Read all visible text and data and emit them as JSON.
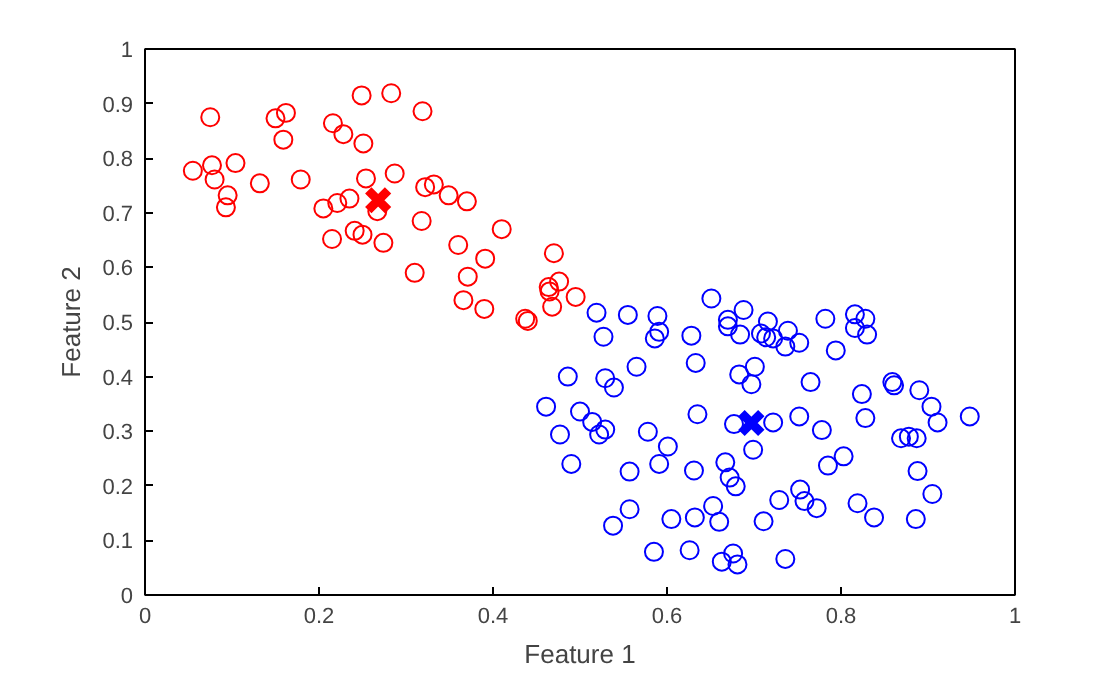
{
  "chart_data": {
    "type": "scatter",
    "xlabel": "Feature 1",
    "ylabel": "Feature 2",
    "xlim": [
      0,
      1
    ],
    "ylim": [
      0,
      1
    ],
    "xticks": [
      0,
      0.2,
      0.4,
      0.6,
      0.8,
      1
    ],
    "yticks": [
      0,
      0.1,
      0.2,
      0.3,
      0.4,
      0.5,
      0.6,
      0.7,
      0.8,
      0.9,
      1
    ],
    "grid": false,
    "series": [
      {
        "color": "#ff0000",
        "marker": "circle",
        "x": [
          0.075,
          0.055,
          0.077,
          0.08,
          0.104,
          0.095,
          0.093,
          0.132,
          0.15,
          0.162,
          0.159,
          0.179,
          0.205,
          0.221,
          0.235,
          0.215,
          0.241,
          0.25,
          0.274,
          0.216,
          0.228,
          0.251,
          0.249,
          0.283,
          0.319,
          0.254,
          0.287,
          0.267,
          0.322,
          0.332,
          0.349,
          0.37,
          0.318,
          0.41,
          0.36,
          0.391,
          0.371,
          0.31,
          0.366,
          0.39,
          0.437,
          0.44,
          0.47,
          0.476,
          0.464,
          0.465,
          0.468,
          0.495
        ],
        "values": [
          0.875,
          0.777,
          0.787,
          0.761,
          0.791,
          0.732,
          0.71,
          0.754,
          0.873,
          0.883,
          0.834,
          0.761,
          0.708,
          0.718,
          0.726,
          0.652,
          0.667,
          0.66,
          0.645,
          0.864,
          0.844,
          0.827,
          0.915,
          0.919,
          0.886,
          0.763,
          0.772,
          0.703,
          0.747,
          0.752,
          0.732,
          0.721,
          0.685,
          0.67,
          0.641,
          0.616,
          0.583,
          0.59,
          0.54,
          0.524,
          0.506,
          0.502,
          0.626,
          0.574,
          0.564,
          0.556,
          0.528,
          0.546
        ]
      },
      {
        "color": "#0000ff",
        "marker": "circle",
        "x": [
          0.519,
          0.555,
          0.589,
          0.527,
          0.591,
          0.586,
          0.628,
          0.651,
          0.67,
          0.67,
          0.688,
          0.684,
          0.716,
          0.708,
          0.714,
          0.722,
          0.739,
          0.736,
          0.752,
          0.782,
          0.816,
          0.828,
          0.816,
          0.83,
          0.794,
          0.486,
          0.529,
          0.539,
          0.565,
          0.633,
          0.683,
          0.697,
          0.701,
          0.765,
          0.859,
          0.861,
          0.89,
          0.824,
          0.461,
          0.904,
          0.911,
          0.948,
          0.828,
          0.752,
          0.722,
          0.778,
          0.869,
          0.878,
          0.887,
          0.803,
          0.785,
          0.888,
          0.753,
          0.758,
          0.772,
          0.729,
          0.819,
          0.838,
          0.905,
          0.886,
          0.711,
          0.736,
          0.5,
          0.514,
          0.529,
          0.522,
          0.477,
          0.49,
          0.578,
          0.601,
          0.635,
          0.677,
          0.699,
          0.591,
          0.557,
          0.631,
          0.667,
          0.672,
          0.679,
          0.653,
          0.66,
          0.632,
          0.605,
          0.557,
          0.538,
          0.585,
          0.626,
          0.663,
          0.676,
          0.681
        ],
        "values": [
          0.517,
          0.513,
          0.511,
          0.473,
          0.482,
          0.47,
          0.475,
          0.543,
          0.504,
          0.492,
          0.522,
          0.477,
          0.501,
          0.479,
          0.472,
          0.47,
          0.484,
          0.455,
          0.462,
          0.506,
          0.514,
          0.506,
          0.489,
          0.477,
          0.448,
          0.4,
          0.397,
          0.38,
          0.418,
          0.425,
          0.404,
          0.386,
          0.418,
          0.39,
          0.39,
          0.384,
          0.375,
          0.368,
          0.345,
          0.345,
          0.316,
          0.327,
          0.324,
          0.327,
          0.316,
          0.302,
          0.287,
          0.29,
          0.287,
          0.254,
          0.237,
          0.227,
          0.193,
          0.172,
          0.159,
          0.174,
          0.168,
          0.142,
          0.185,
          0.139,
          0.135,
          0.066,
          0.336,
          0.317,
          0.303,
          0.294,
          0.294,
          0.24,
          0.299,
          0.272,
          0.331,
          0.313,
          0.266,
          0.24,
          0.226,
          0.228,
          0.243,
          0.215,
          0.199,
          0.163,
          0.134,
          0.142,
          0.139,
          0.157,
          0.127,
          0.079,
          0.082,
          0.061,
          0.076,
          0.056
        ]
      },
      {
        "color": "#ff0000",
        "marker": "cross",
        "x": [
          0.268
        ],
        "values": [
          0.723
        ]
      },
      {
        "color": "#0000ff",
        "marker": "cross",
        "x": [
          0.697
        ],
        "values": [
          0.315
        ]
      }
    ]
  }
}
